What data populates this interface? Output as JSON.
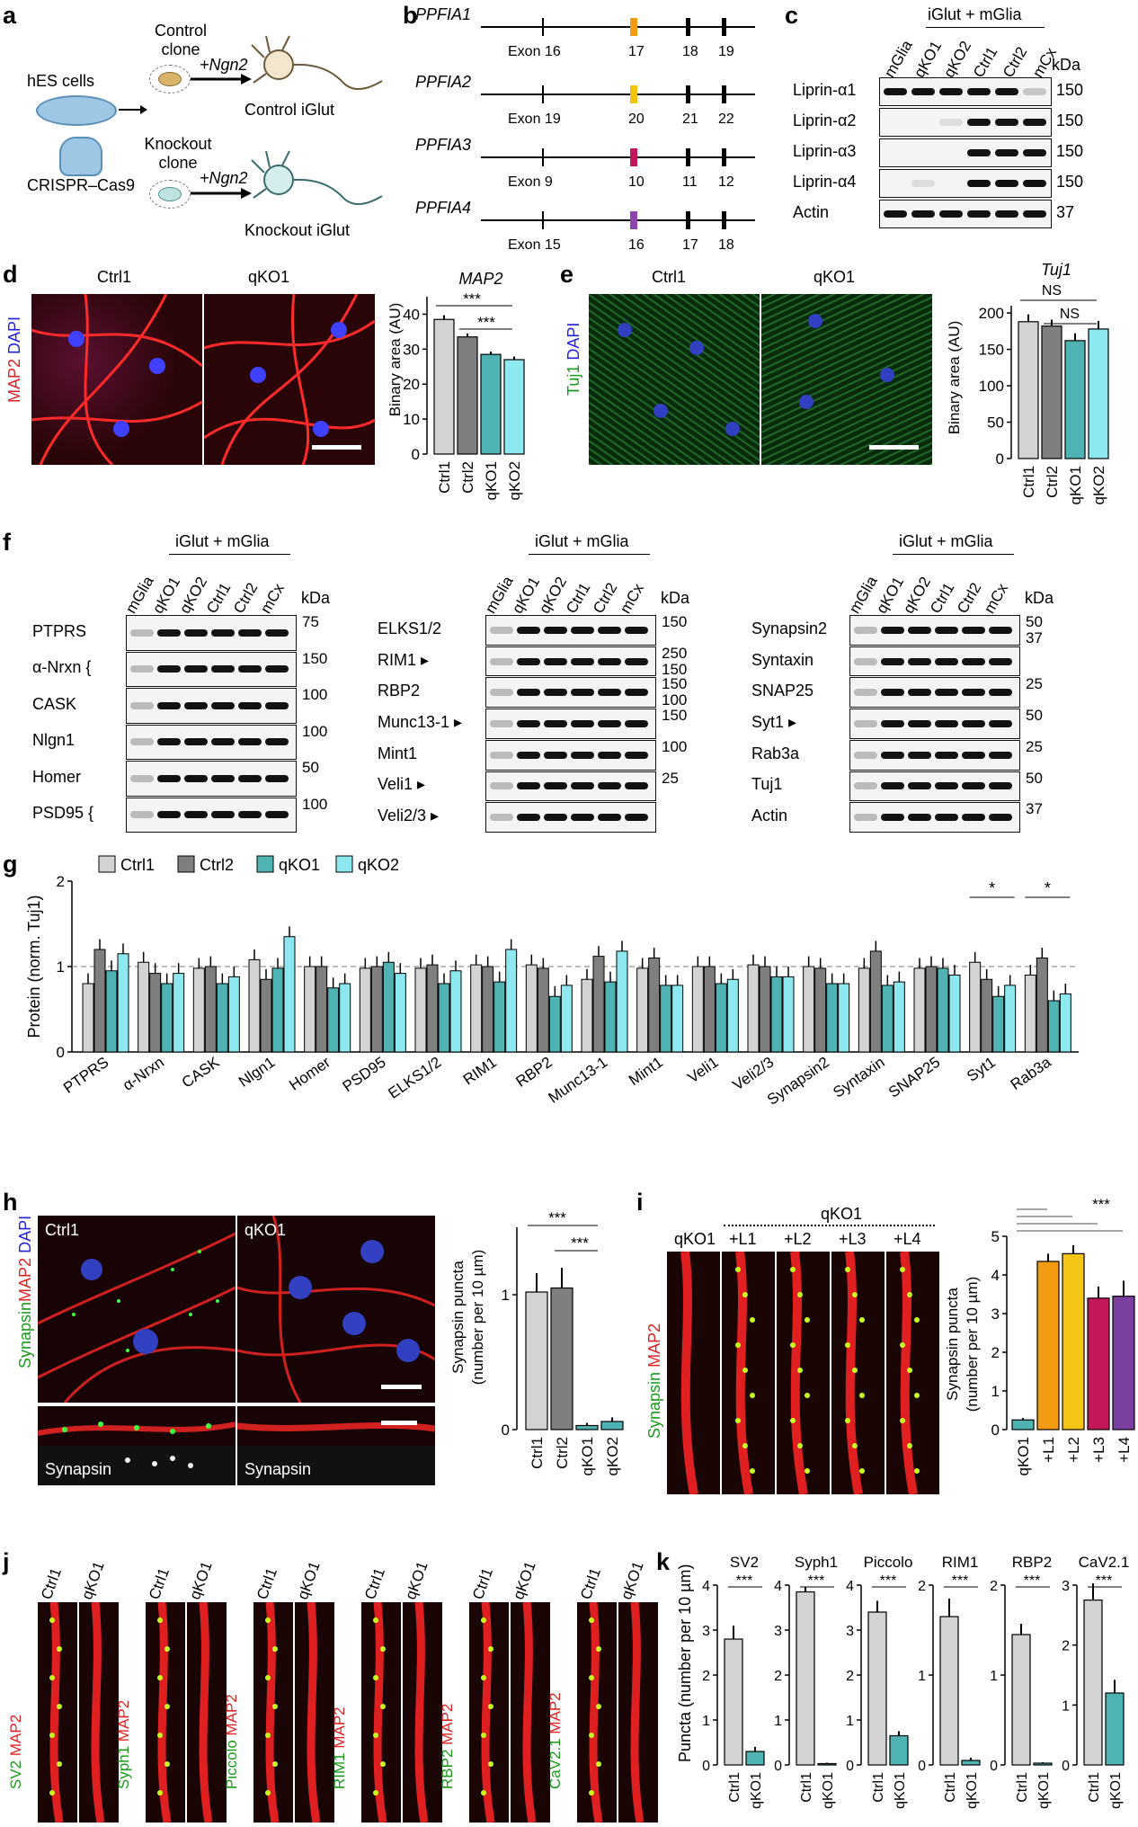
{
  "panel_labels": [
    "a",
    "b",
    "c",
    "d",
    "e",
    "f",
    "g",
    "h",
    "i",
    "j",
    "k"
  ],
  "panel_a": {
    "cell_source": "hES cells",
    "crispr": "CRISPR–Cas9",
    "control_clone": "Control clone",
    "knockout_clone": "Knockout clone",
    "ngn2": "+Ngn2",
    "control_out": "Control iGlut",
    "knockout_out": "Knockout iGlut"
  },
  "panel_b": {
    "genes": [
      {
        "name": "PPFIA1",
        "exons": [
          "Exon 16",
          "17",
          "18",
          "19"
        ],
        "cut_color": "#f39c12"
      },
      {
        "name": "PPFIA2",
        "exons": [
          "Exon 19",
          "20",
          "21",
          "22"
        ],
        "cut_color": "#f1c40f"
      },
      {
        "name": "PPFIA3",
        "exons": [
          "Exon 9",
          "10",
          "11",
          "12"
        ],
        "cut_color": "#c2185b"
      },
      {
        "name": "PPFIA4",
        "exons": [
          "Exon 15",
          "16",
          "17",
          "18"
        ],
        "cut_color": "#8e44ad"
      }
    ]
  },
  "panel_c": {
    "group": "iGlut + mGlia",
    "lanes": [
      "mGlia",
      "qKO1",
      "qKO2",
      "Ctrl1",
      "Ctrl2",
      "mCx"
    ],
    "kda": "kDa",
    "rows": [
      {
        "label": "Liprin-α1",
        "mw": "150"
      },
      {
        "label": "Liprin-α2",
        "mw": "150"
      },
      {
        "label": "Liprin-α3",
        "mw": "150"
      },
      {
        "label": "Liprin-α4",
        "mw": "150"
      },
      {
        "label": "Actin",
        "mw": "37"
      }
    ]
  },
  "panel_d": {
    "col1": "Ctrl1",
    "col2": "qKO1",
    "stain_a": "MAP2",
    "stain_b": "DAPI",
    "title": "MAP2",
    "ylabel": "Binary area (AU)",
    "sig": [
      "***",
      "***"
    ]
  },
  "panel_e": {
    "col1": "Ctrl1",
    "col2": "qKO1",
    "stain_a": "Tuj1",
    "stain_b": "DAPI",
    "title": "Tuj1",
    "ylabel": "Binary area (AU)",
    "sig": [
      "NS",
      "NS"
    ]
  },
  "panel_f": {
    "group": "iGlut + mGlia",
    "lanes": [
      "mGlia",
      "qKO1",
      "qKO2",
      "Ctrl1",
      "Ctrl2",
      "mCx"
    ],
    "kda": "kDa",
    "blot1": [
      {
        "label": "PTPRS",
        "mw": [
          "75"
        ]
      },
      {
        "label": "α-Nrxn {",
        "mw": [
          "150"
        ]
      },
      {
        "label": "CASK",
        "mw": [
          "100"
        ]
      },
      {
        "label": "Nlgn1",
        "mw": [
          "100"
        ]
      },
      {
        "label": "Homer",
        "mw": [
          "50"
        ]
      },
      {
        "label": "PSD95 {",
        "mw": [
          "100"
        ]
      }
    ],
    "blot2": [
      {
        "label": "ELKS1/2",
        "mw": [
          "150"
        ]
      },
      {
        "label": "RIM1 ▸",
        "mw": [
          "250",
          "150"
        ]
      },
      {
        "label": "RBP2",
        "mw": [
          "150",
          "100"
        ]
      },
      {
        "label": "Munc13-1 ▸",
        "mw": [
          "150"
        ]
      },
      {
        "label": "Mint1",
        "mw": [
          "100"
        ]
      },
      {
        "label": "Veli1 ▸",
        "mw": [
          "25"
        ]
      },
      {
        "label": "Veli2/3 ▸",
        "mw": []
      }
    ],
    "blot3": [
      {
        "label": "Synapsin2",
        "mw": [
          "50",
          "37"
        ]
      },
      {
        "label": "Syntaxin",
        "mw": []
      },
      {
        "label": "SNAP25",
        "mw": [
          "25"
        ]
      },
      {
        "label": "Syt1 ▸",
        "mw": [
          "50"
        ]
      },
      {
        "label": "Rab3a",
        "mw": [
          "25"
        ]
      },
      {
        "label": "Tuj1",
        "mw": [
          "50"
        ]
      },
      {
        "label": "Actin",
        "mw": [
          "37"
        ]
      }
    ]
  },
  "panel_h": {
    "col1": "Ctrl1",
    "col2": "qKO1",
    "stain_a": "Synapsin",
    "stain_b": "MAP2",
    "stain_c": "DAPI",
    "inset": "Synapsin",
    "ylabel_1": "Synapsin puncta",
    "ylabel_2": "(number per 10 µm)",
    "sig": [
      "***",
      "***"
    ]
  },
  "panel_i": {
    "group": "qKO1",
    "cols": [
      "qKO1",
      "+L1",
      "+L2",
      "+L3",
      "+L4"
    ],
    "stain_a": "Synapsin",
    "stain_b": "MAP2",
    "ylabel_1": "Synapsin puncta",
    "ylabel_2": "(number per 10 µm)",
    "sig": "***"
  },
  "panel_j": {
    "pairs": [
      {
        "marker": "SV2"
      },
      {
        "marker": "Syph1"
      },
      {
        "marker": "Piccolo"
      },
      {
        "marker": "RIM1"
      },
      {
        "marker": "RBP2"
      },
      {
        "marker": "CaV2.1"
      }
    ],
    "ctrl": "Ctrl1",
    "ko": "qKO1",
    "stain": "MAP2"
  },
  "panel_k": {
    "ylabel": "Puncta (number per 10 µm)",
    "sig": "***"
  },
  "chart_data": [
    {
      "panel": "d",
      "type": "bar",
      "title": "MAP2",
      "ylabel": "Binary area (AU)",
      "categories": [
        "Ctrl1",
        "Ctrl2",
        "qKO1",
        "qKO2"
      ],
      "values": [
        38.5,
        33.5,
        28.5,
        27
      ],
      "errors": [
        1.2,
        1.0,
        0.8,
        0.9
      ],
      "colors": [
        "#d3d3d3",
        "#7f7f7f",
        "#4fb3b3",
        "#8ee8f0"
      ],
      "ylim": [
        0,
        45
      ],
      "yticks": [
        0,
        10,
        20,
        30,
        40
      ],
      "significance": [
        "***",
        "***"
      ]
    },
    {
      "panel": "e",
      "type": "bar",
      "title": "Tuj1",
      "ylabel": "Binary area (AU)",
      "categories": [
        "Ctrl1",
        "Ctrl2",
        "qKO1",
        "qKO2"
      ],
      "values": [
        188,
        182,
        162,
        178
      ],
      "errors": [
        10,
        9,
        10,
        11
      ],
      "colors": [
        "#d3d3d3",
        "#7f7f7f",
        "#4fb3b3",
        "#8ee8f0"
      ],
      "ylim": [
        0,
        210
      ],
      "yticks": [
        0,
        50,
        100,
        150,
        200
      ],
      "significance": [
        "NS",
        "NS"
      ]
    },
    {
      "panel": "g",
      "type": "bar",
      "ylabel": "Protein (norm. Tuj1)",
      "categories": [
        "PTPRS",
        "α-Nrxn",
        "CASK",
        "Nlgn1",
        "Homer",
        "PSD95",
        "ELKS1/2",
        "RIM1",
        "RBP2",
        "Munc13-1",
        "Mint1",
        "Veli1",
        "Veli2/3",
        "Synapsin2",
        "Syntaxin",
        "SNAP25",
        "Syt1",
        "Rab3a"
      ],
      "series": [
        {
          "name": "Ctrl1",
          "color": "#d3d3d3",
          "values": [
            0.8,
            1.05,
            0.98,
            1.08,
            1.0,
            0.98,
            0.98,
            1.02,
            1.02,
            0.85,
            0.98,
            1.0,
            1.02,
            1.0,
            0.98,
            0.98,
            1.05,
            0.9
          ]
        },
        {
          "name": "Ctrl2",
          "color": "#7f7f7f",
          "values": [
            1.2,
            0.92,
            1.0,
            0.85,
            1.0,
            1.0,
            1.02,
            1.0,
            0.98,
            1.12,
            1.1,
            1.0,
            1.0,
            0.98,
            1.18,
            1.0,
            0.85,
            1.1
          ]
        },
        {
          "name": "qKO1",
          "color": "#4fb3b3",
          "values": [
            0.95,
            0.8,
            0.8,
            0.98,
            0.75,
            1.05,
            0.8,
            0.82,
            0.65,
            0.82,
            0.78,
            0.8,
            0.88,
            0.8,
            0.78,
            0.98,
            0.65,
            0.6
          ]
        },
        {
          "name": "qKO2",
          "color": "#8ee8f0",
          "values": [
            1.15,
            0.92,
            0.88,
            1.35,
            0.8,
            0.92,
            0.95,
            1.2,
            0.78,
            1.18,
            0.78,
            0.85,
            0.88,
            0.8,
            0.82,
            0.9,
            0.78,
            0.68
          ]
        }
      ],
      "ylim": [
        0,
        2
      ],
      "yticks": [
        0,
        1,
        2
      ],
      "reference_line": 1,
      "significance": [
        {
          "category": "Syt1",
          "label": "*"
        },
        {
          "category": "Rab3a",
          "label": "*"
        }
      ]
    },
    {
      "panel": "h",
      "type": "bar",
      "ylabel": "Synapsin puncta (number per 10 µm)",
      "categories": [
        "Ctrl1",
        "Ctrl2",
        "qKO1",
        "qKO2"
      ],
      "values": [
        1.02,
        1.05,
        0.03,
        0.06
      ],
      "errors": [
        0.14,
        0.15,
        0.02,
        0.03
      ],
      "colors": [
        "#d3d3d3",
        "#7f7f7f",
        "#4fb3b3",
        "#4fb3b3"
      ],
      "ylim": [
        0,
        1.5
      ],
      "yticks": [
        0,
        1
      ],
      "significance": [
        "***",
        "***"
      ]
    },
    {
      "panel": "i",
      "type": "bar",
      "ylabel": "Synapsin puncta (number per 10 µm)",
      "categories": [
        "qKO1",
        "+L1",
        "+L2",
        "+L3",
        "+L4"
      ],
      "values": [
        0.25,
        4.35,
        4.55,
        3.4,
        3.45
      ],
      "errors": [
        0.05,
        0.2,
        0.22,
        0.3,
        0.4
      ],
      "colors": [
        "#4fb3b3",
        "#f39c12",
        "#f5c518",
        "#c2185b",
        "#7b3fa0"
      ],
      "ylim": [
        0,
        5
      ],
      "yticks": [
        0,
        1,
        2,
        3,
        4,
        5
      ],
      "significance": [
        "***"
      ]
    },
    {
      "panel": "k",
      "type": "bar",
      "ylabel": "Puncta (number per 10 µm)",
      "subplots": [
        {
          "title": "SV2",
          "categories": [
            "Ctrl1",
            "qKO1"
          ],
          "values": [
            2.8,
            0.3
          ],
          "errors": [
            0.3,
            0.1
          ],
          "ylim": [
            0,
            4
          ],
          "yticks": [
            0,
            1,
            2,
            3,
            4
          ]
        },
        {
          "title": "Syph1",
          "categories": [
            "Ctrl1",
            "qKO1"
          ],
          "values": [
            3.85,
            0.03
          ],
          "errors": [
            0.12,
            0.02
          ],
          "ylim": [
            0,
            4
          ],
          "yticks": [
            0,
            1,
            2,
            3,
            4
          ]
        },
        {
          "title": "Piccolo",
          "categories": [
            "Ctrl1",
            "qKO1"
          ],
          "values": [
            3.4,
            0.65
          ],
          "errors": [
            0.25,
            0.1
          ],
          "ylim": [
            0,
            4
          ],
          "yticks": [
            0,
            1,
            2,
            3,
            4
          ]
        },
        {
          "title": "RIM1",
          "categories": [
            "Ctrl1",
            "qKO1"
          ],
          "values": [
            1.65,
            0.05
          ],
          "errors": [
            0.2,
            0.03
          ],
          "ylim": [
            0,
            2
          ],
          "yticks": [
            0,
            1,
            2
          ]
        },
        {
          "title": "RBP2",
          "categories": [
            "Ctrl1",
            "qKO1"
          ],
          "values": [
            1.45,
            0.02
          ],
          "errors": [
            0.12,
            0.01
          ],
          "ylim": [
            0,
            2
          ],
          "yticks": [
            0,
            1,
            2
          ]
        },
        {
          "title": "CaV2.1",
          "categories": [
            "Ctrl1",
            "qKO1"
          ],
          "values": [
            2.75,
            1.2
          ],
          "errors": [
            0.28,
            0.22
          ],
          "ylim": [
            0,
            3
          ],
          "yticks": [
            0,
            1,
            2,
            3
          ]
        }
      ],
      "colors": [
        "#d3d3d3",
        "#4fb3b3"
      ],
      "significance": "***"
    }
  ]
}
